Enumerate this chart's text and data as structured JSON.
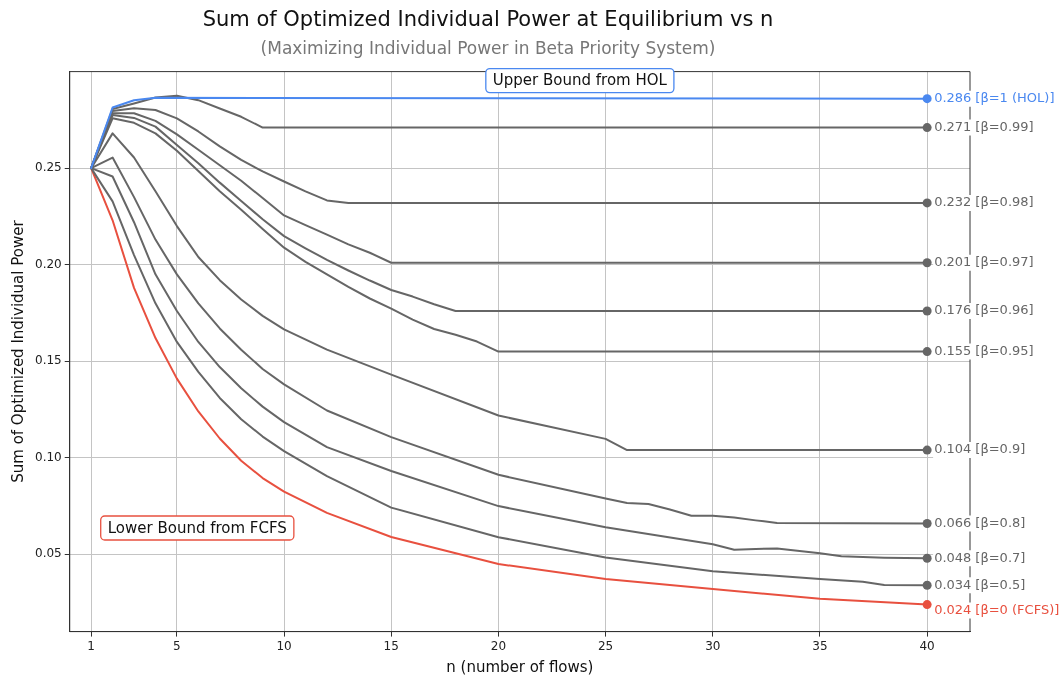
{
  "chart_data": {
    "type": "line",
    "title": "Sum of Optimized Individual Power at Equilibrium vs n",
    "subtitle": "(Maximizing Individual Power in Beta Priority System)",
    "xlabel": "n (number of flows)",
    "ylabel": "Sum of Optimized Individual Power",
    "xlim": [
      0,
      42
    ],
    "xticks": [
      1,
      5,
      10,
      15,
      20,
      25,
      30,
      35,
      40
    ],
    "ylim": [
      0.01,
      0.3
    ],
    "yticks": [
      {
        "value": 0.05,
        "label": "0.05"
      },
      {
        "value": 0.1,
        "label": "0.10"
      },
      {
        "value": 0.15,
        "label": "0.15"
      },
      {
        "value": 0.2,
        "label": "0.20"
      },
      {
        "value": 0.25,
        "label": "0.25"
      }
    ],
    "grid": true,
    "legend": false,
    "line_style": "solid",
    "annotations": [
      "Upper Bound from HOL",
      "Lower Bound from FCFS"
    ],
    "series": [
      {
        "name": "[β=1 (HOL)]",
        "color": "#4a88f0",
        "x": [
          1,
          2,
          3,
          4,
          40
        ],
        "values": [
          0.25,
          0.2814,
          0.2852,
          0.2864,
          0.286
        ],
        "value_labels": [
          null,
          null,
          null,
          null,
          "0.286"
        ]
      },
      {
        "name": "[β=0.99]",
        "color": "#666666",
        "x": [
          1,
          2,
          3,
          4,
          5,
          6,
          7,
          8,
          9,
          40
        ],
        "values": [
          0.25,
          0.2806,
          0.2835,
          0.2866,
          0.2875,
          0.2852,
          0.2809,
          0.2766,
          0.271,
          0.271
        ],
        "value_labels": [
          null,
          null,
          null,
          null,
          null,
          null,
          null,
          null,
          null,
          "0.271"
        ]
      },
      {
        "name": "[β=0.98]",
        "color": "#666666",
        "x": [
          1,
          2,
          3,
          4,
          5,
          6,
          7,
          8,
          9,
          10,
          11,
          12,
          13,
          40
        ],
        "values": [
          0.25,
          0.2796,
          0.281,
          0.2801,
          0.2758,
          0.269,
          0.2613,
          0.2543,
          0.2483,
          0.2431,
          0.238,
          0.2333,
          0.232,
          0.232
        ],
        "value_labels": [
          null,
          null,
          null,
          null,
          null,
          null,
          null,
          null,
          null,
          null,
          null,
          null,
          null,
          "0.232"
        ]
      },
      {
        "name": "[β=0.97]",
        "color": "#666666",
        "x": [
          1,
          2,
          3,
          4,
          5,
          6,
          7,
          8,
          9,
          10,
          11,
          12,
          13,
          14,
          15,
          40
        ],
        "values": [
          0.25,
          0.2784,
          0.2784,
          0.2745,
          0.2675,
          0.2595,
          0.2515,
          0.2435,
          0.2345,
          0.2255,
          0.2205,
          0.2156,
          0.2105,
          0.2062,
          0.201,
          0.201
        ],
        "value_labels": [
          null,
          null,
          null,
          null,
          null,
          null,
          null,
          null,
          null,
          null,
          null,
          null,
          null,
          null,
          null,
          "0.201"
        ]
      },
      {
        "name": "[β=0.96]",
        "color": "#666666",
        "x": [
          1,
          2,
          3,
          4,
          5,
          6,
          7,
          8,
          9,
          10,
          11,
          12,
          13,
          14,
          15,
          16,
          17,
          18,
          40
        ],
        "values": [
          0.25,
          0.2775,
          0.276,
          0.2715,
          0.262,
          0.2525,
          0.2425,
          0.233,
          0.2235,
          0.2148,
          0.2085,
          0.2025,
          0.197,
          0.1918,
          0.1869,
          0.1835,
          0.1795,
          0.176,
          0.176
        ],
        "value_labels": [
          null,
          null,
          null,
          null,
          null,
          null,
          null,
          null,
          null,
          null,
          null,
          null,
          null,
          null,
          null,
          null,
          null,
          null,
          "0.176"
        ]
      },
      {
        "name": "[β=0.95]",
        "color": "#666666",
        "x": [
          1,
          2,
          3,
          4,
          5,
          6,
          7,
          8,
          9,
          10,
          11,
          12,
          13,
          14,
          15,
          16,
          17,
          18,
          19,
          20,
          40
        ],
        "values": [
          0.25,
          0.2758,
          0.2735,
          0.268,
          0.259,
          0.2485,
          0.238,
          0.2285,
          0.2185,
          0.2088,
          0.2015,
          0.195,
          0.1885,
          0.1825,
          0.1773,
          0.1716,
          0.1667,
          0.1637,
          0.1602,
          0.155,
          0.155
        ],
        "value_labels": [
          null,
          null,
          null,
          null,
          null,
          null,
          null,
          null,
          null,
          null,
          null,
          null,
          null,
          null,
          null,
          null,
          null,
          null,
          null,
          null,
          "0.155"
        ]
      },
      {
        "name": "[β=0.9]",
        "color": "#666666",
        "x": [
          1,
          2,
          3,
          4,
          5,
          6,
          7,
          8,
          9,
          10,
          12,
          15,
          20,
          25,
          26,
          40
        ],
        "values": [
          0.25,
          0.268,
          0.2555,
          0.238,
          0.22,
          0.204,
          0.192,
          0.182,
          0.1735,
          0.1665,
          0.156,
          0.1431,
          0.1219,
          0.1098,
          0.104,
          0.104
        ],
        "value_labels": [
          null,
          null,
          null,
          null,
          null,
          null,
          null,
          null,
          null,
          null,
          null,
          null,
          null,
          null,
          null,
          "0.104"
        ]
      },
      {
        "name": "[β=0.8]",
        "color": "#666666",
        "x": [
          1,
          2,
          3,
          4,
          5,
          6,
          7,
          8,
          9,
          10,
          12,
          15,
          20,
          25,
          26,
          27,
          28,
          29,
          30,
          31,
          32,
          33,
          40
        ],
        "values": [
          0.25,
          0.2555,
          0.235,
          0.213,
          0.195,
          0.18,
          0.167,
          0.156,
          0.146,
          0.138,
          0.1245,
          0.1107,
          0.0912,
          0.0789,
          0.0766,
          0.0761,
          0.0732,
          0.07,
          0.07,
          0.0691,
          0.0676,
          0.0663,
          0.066
        ],
        "value_labels": [
          null,
          null,
          null,
          null,
          null,
          null,
          null,
          null,
          null,
          null,
          null,
          null,
          null,
          null,
          null,
          null,
          null,
          null,
          null,
          null,
          null,
          null,
          "0.066"
        ]
      },
      {
        "name": "[β=0.7]",
        "color": "#666666",
        "x": [
          1,
          2,
          3,
          4,
          5,
          6,
          7,
          8,
          9,
          10,
          12,
          15,
          20,
          25,
          30,
          31,
          32,
          33,
          35,
          36,
          38,
          40
        ],
        "values": [
          0.25,
          0.2457,
          0.222,
          0.195,
          0.176,
          0.16,
          0.147,
          0.136,
          0.1265,
          0.1185,
          0.1055,
          0.0932,
          0.075,
          0.064,
          0.0552,
          0.0524,
          0.0528,
          0.053,
          0.0506,
          0.049,
          0.0483,
          0.048
        ],
        "value_labels": [
          null,
          null,
          null,
          null,
          null,
          null,
          null,
          null,
          null,
          null,
          null,
          null,
          null,
          null,
          null,
          null,
          null,
          null,
          null,
          null,
          null,
          "0.048"
        ]
      },
      {
        "name": "[β=0.5]",
        "color": "#666666",
        "x": [
          1,
          2,
          3,
          4,
          5,
          6,
          7,
          8,
          9,
          10,
          12,
          15,
          20,
          25,
          30,
          35,
          37,
          38,
          40
        ],
        "values": [
          0.25,
          0.2328,
          0.205,
          0.18,
          0.16,
          0.1445,
          0.131,
          0.12,
          0.111,
          0.1035,
          0.0905,
          0.0742,
          0.0589,
          0.0484,
          0.0413,
          0.0372,
          0.0358,
          0.0341,
          0.034
        ],
        "value_labels": [
          null,
          null,
          null,
          null,
          null,
          null,
          null,
          null,
          null,
          null,
          null,
          null,
          null,
          null,
          null,
          null,
          null,
          null,
          "0.034"
        ]
      },
      {
        "name": "[β=0 (FCFS)]",
        "color": "#e8503f",
        "x": [
          1,
          2,
          3,
          4,
          5,
          6,
          7,
          8,
          9,
          10,
          12,
          15,
          20,
          25,
          30,
          35,
          40
        ],
        "values": [
          0.25,
          0.223,
          0.188,
          0.162,
          0.141,
          0.124,
          0.11,
          0.0985,
          0.0895,
          0.0825,
          0.0715,
          0.059,
          0.045,
          0.0372,
          0.032,
          0.027,
          0.024
        ],
        "value_labels": [
          null,
          null,
          null,
          null,
          null,
          null,
          null,
          null,
          null,
          null,
          null,
          null,
          null,
          null,
          null,
          null,
          "0.024"
        ]
      }
    ]
  }
}
